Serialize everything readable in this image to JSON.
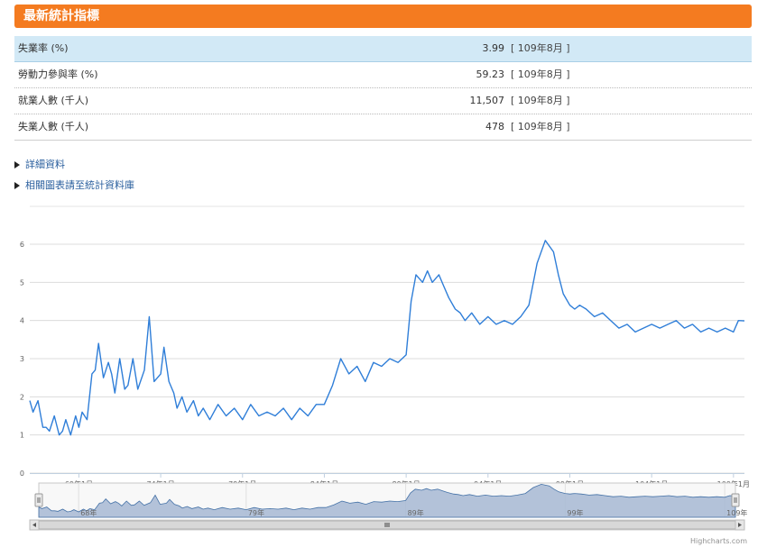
{
  "header": {
    "title": "最新統計指標"
  },
  "stats": [
    {
      "label": "失業率 (%)",
      "value": "3.99",
      "period": "[ 109年8月 ]"
    },
    {
      "label": "勞動力參與率 (%)",
      "value": "59.23",
      "period": "[ 109年8月 ]"
    },
    {
      "label": "就業人數 (千人)",
      "value": "11,507",
      "period": "[ 109年8月 ]"
    },
    {
      "label": "失業人數 (千人)",
      "value": "478",
      "period": "[ 109年8月 ]"
    }
  ],
  "links": [
    {
      "label": "詳細資料"
    },
    {
      "label": "相關圖表請至統計資料庫"
    }
  ],
  "credit": "Highcharts.com",
  "colors": {
    "header": "#f47b20",
    "line": "#2f7ed8",
    "navigator_fill": "#a7b8d3",
    "highlight_row": "#d2e9f6"
  },
  "chart_data": {
    "type": "line",
    "x_unit": "民國年",
    "x_range": [
      66.0,
      109.67
    ],
    "ylim": [
      0,
      6
    ],
    "y_ticks": [
      0,
      1,
      2,
      3,
      4,
      5,
      6
    ],
    "x_ticks": [
      {
        "x": 69.0,
        "label": "69年1月"
      },
      {
        "x": 74.0,
        "label": "74年1月"
      },
      {
        "x": 79.0,
        "label": "79年1月"
      },
      {
        "x": 84.0,
        "label": "84年1月"
      },
      {
        "x": 89.0,
        "label": "89年1月"
      },
      {
        "x": 94.0,
        "label": "94年1月"
      },
      {
        "x": 99.0,
        "label": "99年1月"
      },
      {
        "x": 104.0,
        "label": "104年1月"
      },
      {
        "x": 109.0,
        "label": "109年1月"
      }
    ],
    "navigator_ticks": [
      {
        "x": 68.5,
        "label": "68年"
      },
      {
        "x": 79.0,
        "label": "79年"
      },
      {
        "x": 89.0,
        "label": "89年"
      },
      {
        "x": 99.0,
        "label": "99年"
      },
      {
        "x": 109.0,
        "label": "109年"
      }
    ],
    "grid": true,
    "legend": "none",
    "series": [
      {
        "x": [
          66.0,
          66.2,
          66.5,
          66.8,
          67.0,
          67.2,
          67.5,
          67.8,
          68.0,
          68.2,
          68.5,
          68.8,
          69.0,
          69.2,
          69.5,
          69.8,
          70.0,
          70.2,
          70.5,
          70.8,
          71.0,
          71.2,
          71.5,
          71.8,
          72.0,
          72.3,
          72.6,
          73.0,
          73.3,
          73.6,
          74.0,
          74.2,
          74.5,
          74.8,
          75.0,
          75.3,
          75.6,
          76.0,
          76.3,
          76.6,
          77.0,
          77.5,
          78.0,
          78.5,
          79.0,
          79.5,
          80.0,
          80.5,
          81.0,
          81.5,
          82.0,
          82.5,
          83.0,
          83.5,
          84.0,
          84.5,
          85.0,
          85.5,
          86.0,
          86.5,
          87.0,
          87.5,
          88.0,
          88.5,
          89.0,
          89.3,
          89.6,
          90.0,
          90.3,
          90.6,
          91.0,
          91.3,
          91.6,
          92.0,
          92.3,
          92.6,
          93.0,
          93.5,
          94.0,
          94.5,
          95.0,
          95.5,
          96.0,
          96.5,
          97.0,
          97.5,
          98.0,
          98.3,
          98.6,
          99.0,
          99.3,
          99.6,
          100.0,
          100.5,
          101.0,
          101.5,
          102.0,
          102.5,
          103.0,
          103.5,
          104.0,
          104.5,
          105.0,
          105.5,
          106.0,
          106.5,
          107.0,
          107.5,
          108.0,
          108.5,
          109.0,
          109.3,
          109.67
        ],
        "values": [
          1.9,
          1.6,
          1.9,
          1.2,
          1.2,
          1.1,
          1.5,
          1.0,
          1.1,
          1.4,
          1.0,
          1.5,
          1.2,
          1.6,
          1.4,
          2.6,
          2.7,
          3.4,
          2.5,
          2.9,
          2.6,
          2.1,
          3.0,
          2.2,
          2.3,
          3.0,
          2.2,
          2.7,
          4.1,
          2.4,
          2.6,
          3.3,
          2.4,
          2.1,
          1.7,
          2.0,
          1.6,
          1.9,
          1.5,
          1.7,
          1.4,
          1.8,
          1.5,
          1.7,
          1.4,
          1.8,
          1.5,
          1.6,
          1.5,
          1.7,
          1.4,
          1.7,
          1.5,
          1.8,
          1.8,
          2.3,
          3.0,
          2.6,
          2.8,
          2.4,
          2.9,
          2.8,
          3.0,
          2.9,
          3.1,
          4.5,
          5.2,
          5.0,
          5.3,
          5.0,
          5.2,
          4.9,
          4.6,
          4.3,
          4.2,
          4.0,
          4.2,
          3.9,
          4.1,
          3.9,
          4.0,
          3.9,
          4.1,
          4.4,
          5.5,
          6.1,
          5.8,
          5.2,
          4.7,
          4.4,
          4.3,
          4.4,
          4.3,
          4.1,
          4.2,
          4.0,
          3.8,
          3.9,
          3.7,
          3.8,
          3.9,
          3.8,
          3.9,
          4.0,
          3.8,
          3.9,
          3.7,
          3.8,
          3.7,
          3.8,
          3.7,
          4.0,
          3.99
        ]
      }
    ]
  }
}
